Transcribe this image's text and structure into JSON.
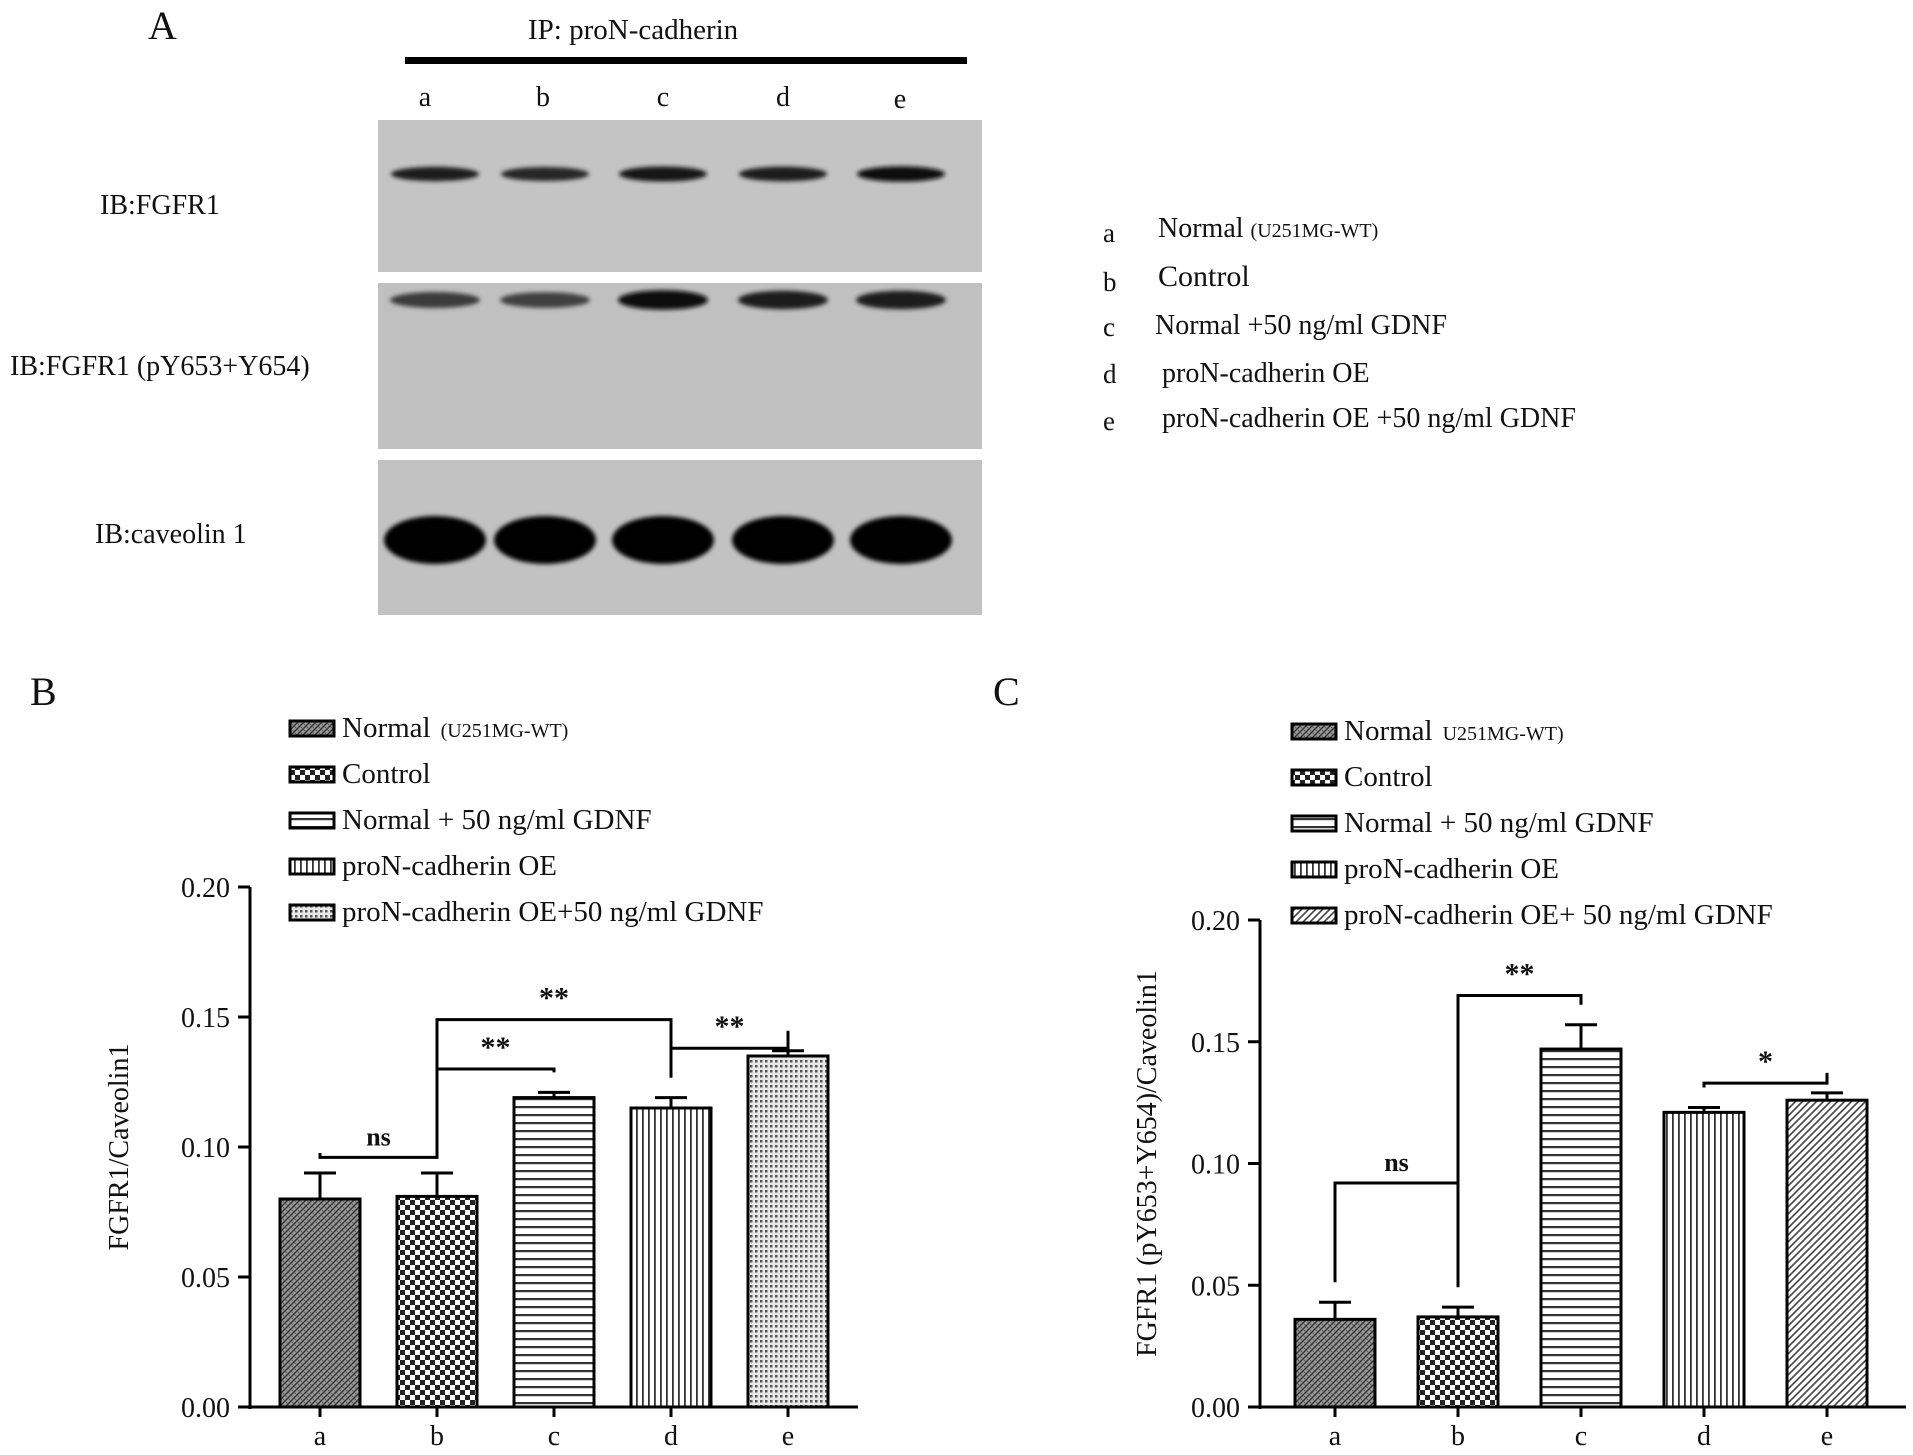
{
  "panel_a": {
    "letter": "A",
    "ip_label": "IP: proN-cadherin",
    "lanes": [
      "a",
      "b",
      "c",
      "d",
      "e"
    ],
    "rows": [
      {
        "label": "IB:FGFR1",
        "intensity": [
          0.75,
          0.7,
          0.85,
          0.8,
          0.9
        ]
      },
      {
        "label": "IB:FGFR1 (pY653+Y654)",
        "intensity": [
          0.5,
          0.45,
          0.95,
          0.8,
          0.8
        ]
      },
      {
        "label": "IB:caveolin 1",
        "intensity": [
          1,
          1,
          1,
          1,
          1
        ]
      }
    ],
    "key": [
      {
        "letter": "a",
        "text": "Normal",
        "small": "(U251MG-WT)"
      },
      {
        "letter": "b",
        "text": "Control",
        "small": ""
      },
      {
        "letter": "c",
        "text": "Normal +50 ng/ml GDNF",
        "small": ""
      },
      {
        "letter": "d",
        "text": "proN-cadherin OE",
        "small": ""
      },
      {
        "letter": "e",
        "text": "proN-cadherin OE +50 ng/ml GDNF",
        "small": ""
      }
    ]
  },
  "chart_data": [
    {
      "type": "bar",
      "panel": "B",
      "ylabel": "FGFR1/Caveolin1",
      "xlabel": "",
      "categories": [
        "a",
        "b",
        "c",
        "d",
        "e"
      ],
      "values": [
        0.08,
        0.081,
        0.119,
        0.115,
        0.135
      ],
      "errors": [
        0.01,
        0.009,
        0.002,
        0.004,
        0.002
      ],
      "ylim": [
        0,
        0.2
      ],
      "yticks": [
        "0.00",
        "0.05",
        "0.10",
        "0.15",
        "0.20"
      ],
      "legend": [
        {
          "text": "Normal",
          "small": "(U251MG-WT)",
          "pattern": "diag"
        },
        {
          "text": "Control",
          "small": "",
          "pattern": "check"
        },
        {
          "text": "Normal + 50 ng/ml GDNF",
          "small": "",
          "pattern": "hlines"
        },
        {
          "text": "proN-cadherin OE",
          "small": "",
          "pattern": "vlines"
        },
        {
          "text": "proN-cadherin OE+50  ng/ml GDNF",
          "small": "",
          "pattern": "dots"
        }
      ],
      "significance": [
        {
          "label": "ns",
          "from": 0,
          "to": 1
        },
        {
          "label": "**",
          "from": 1,
          "to": 2
        },
        {
          "label": "**",
          "from": 1,
          "to": 3
        },
        {
          "label": "**",
          "from": 3,
          "to": 4
        }
      ]
    },
    {
      "type": "bar",
      "panel": "C",
      "ylabel": "FGFR1  (pY653+Y654)/Caveolin1",
      "xlabel": "",
      "categories": [
        "a",
        "b",
        "c",
        "d",
        "e"
      ],
      "values": [
        0.036,
        0.037,
        0.147,
        0.121,
        0.126
      ],
      "errors": [
        0.007,
        0.004,
        0.01,
        0.002,
        0.003
      ],
      "ylim": [
        0,
        0.2
      ],
      "yticks": [
        "0.00",
        "0.05",
        "0.10",
        "0.15",
        "0.20"
      ],
      "legend": [
        {
          "text": "Normal",
          "small": "U251MG-WT)",
          "pattern": "diag"
        },
        {
          "text": "Control",
          "small": "",
          "pattern": "check"
        },
        {
          "text": "Normal  + 50 ng/ml GDNF",
          "small": "",
          "pattern": "hlines"
        },
        {
          "text": "proN-cadherin OE",
          "small": "",
          "pattern": "vlines"
        },
        {
          "text": "proN-cadherin OE+ 50 ng/ml GDNF",
          "small": "",
          "pattern": "diag2"
        }
      ],
      "significance": [
        {
          "label": "ns",
          "from": 0,
          "to": 1
        },
        {
          "label": "**",
          "from": 1,
          "to": 2
        },
        {
          "label": "*",
          "from": 3,
          "to": 4
        }
      ]
    }
  ]
}
